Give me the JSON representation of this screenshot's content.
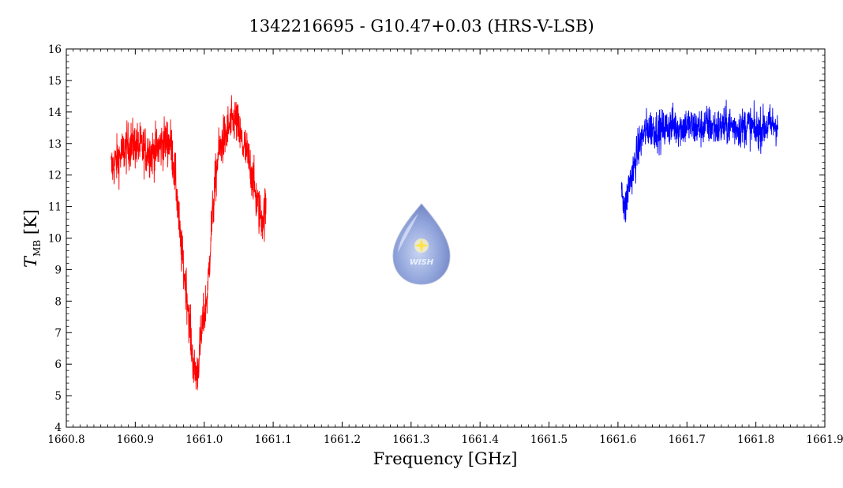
{
  "chart_data": {
    "type": "line",
    "title": "1342216695 - G10.47+0.03 (HRS-V-LSB)",
    "xlabel": "Frequency [GHz]",
    "ylabel_symbol": "T",
    "ylabel_subscript": "MB",
    "ylabel_unit": "[K]",
    "xlim": [
      1660.8,
      1661.9
    ],
    "ylim": [
      4,
      16
    ],
    "x_ticks": [
      "1660.8",
      "1660.9",
      "1661.0",
      "1661.1",
      "1661.2",
      "1661.3",
      "1661.4",
      "1661.5",
      "1661.6",
      "1661.7",
      "1661.8",
      "1661.9"
    ],
    "y_ticks": [
      "4",
      "5",
      "6",
      "7",
      "8",
      "9",
      "10",
      "11",
      "12",
      "13",
      "14",
      "15",
      "16"
    ],
    "grid": false,
    "series": [
      {
        "color": "#ff0000",
        "x": [
          1660.865,
          1660.875,
          1660.885,
          1660.895,
          1660.905,
          1660.915,
          1660.925,
          1660.935,
          1660.945,
          1660.952,
          1660.96,
          1660.965,
          1660.97,
          1660.975,
          1660.98,
          1660.985,
          1660.99,
          1660.995,
          1661.0,
          1661.005,
          1661.01,
          1661.015,
          1661.02,
          1661.025,
          1661.03,
          1661.035,
          1661.04,
          1661.045,
          1661.05,
          1661.055,
          1661.06,
          1661.065,
          1661.07,
          1661.075,
          1661.08,
          1661.085,
          1661.09
        ],
        "y": [
          12.2,
          12.5,
          12.8,
          13.0,
          12.9,
          12.8,
          12.7,
          12.9,
          13.1,
          13.0,
          11.5,
          10.0,
          9.0,
          8.2,
          7.0,
          5.8,
          5.7,
          6.8,
          7.6,
          8.3,
          10.2,
          11.5,
          12.6,
          13.0,
          13.2,
          13.5,
          13.6,
          13.8,
          13.4,
          13.0,
          12.8,
          12.4,
          12.0,
          11.3,
          10.8,
          10.6,
          11.0
        ],
        "noise": 0.55
      },
      {
        "color": "#0000ff",
        "x": [
          1661.605,
          1661.61,
          1661.615,
          1661.62,
          1661.625,
          1661.63,
          1661.635,
          1661.64,
          1661.645,
          1661.65,
          1661.66,
          1661.67,
          1661.68,
          1661.69,
          1661.7,
          1661.71,
          1661.72,
          1661.73,
          1661.74,
          1661.75,
          1661.76,
          1661.77,
          1661.78,
          1661.79,
          1661.8,
          1661.81,
          1661.82,
          1661.832
        ],
        "y": [
          11.8,
          10.8,
          11.6,
          12.0,
          12.4,
          12.9,
          13.2,
          13.4,
          13.5,
          13.5,
          13.4,
          13.5,
          13.6,
          13.5,
          13.6,
          13.5,
          13.5,
          13.6,
          13.5,
          13.5,
          13.6,
          13.5,
          13.5,
          13.6,
          13.4,
          13.5,
          13.6,
          13.6
        ],
        "noise": 0.45
      }
    ]
  },
  "logo": {
    "text": "WISH"
  }
}
